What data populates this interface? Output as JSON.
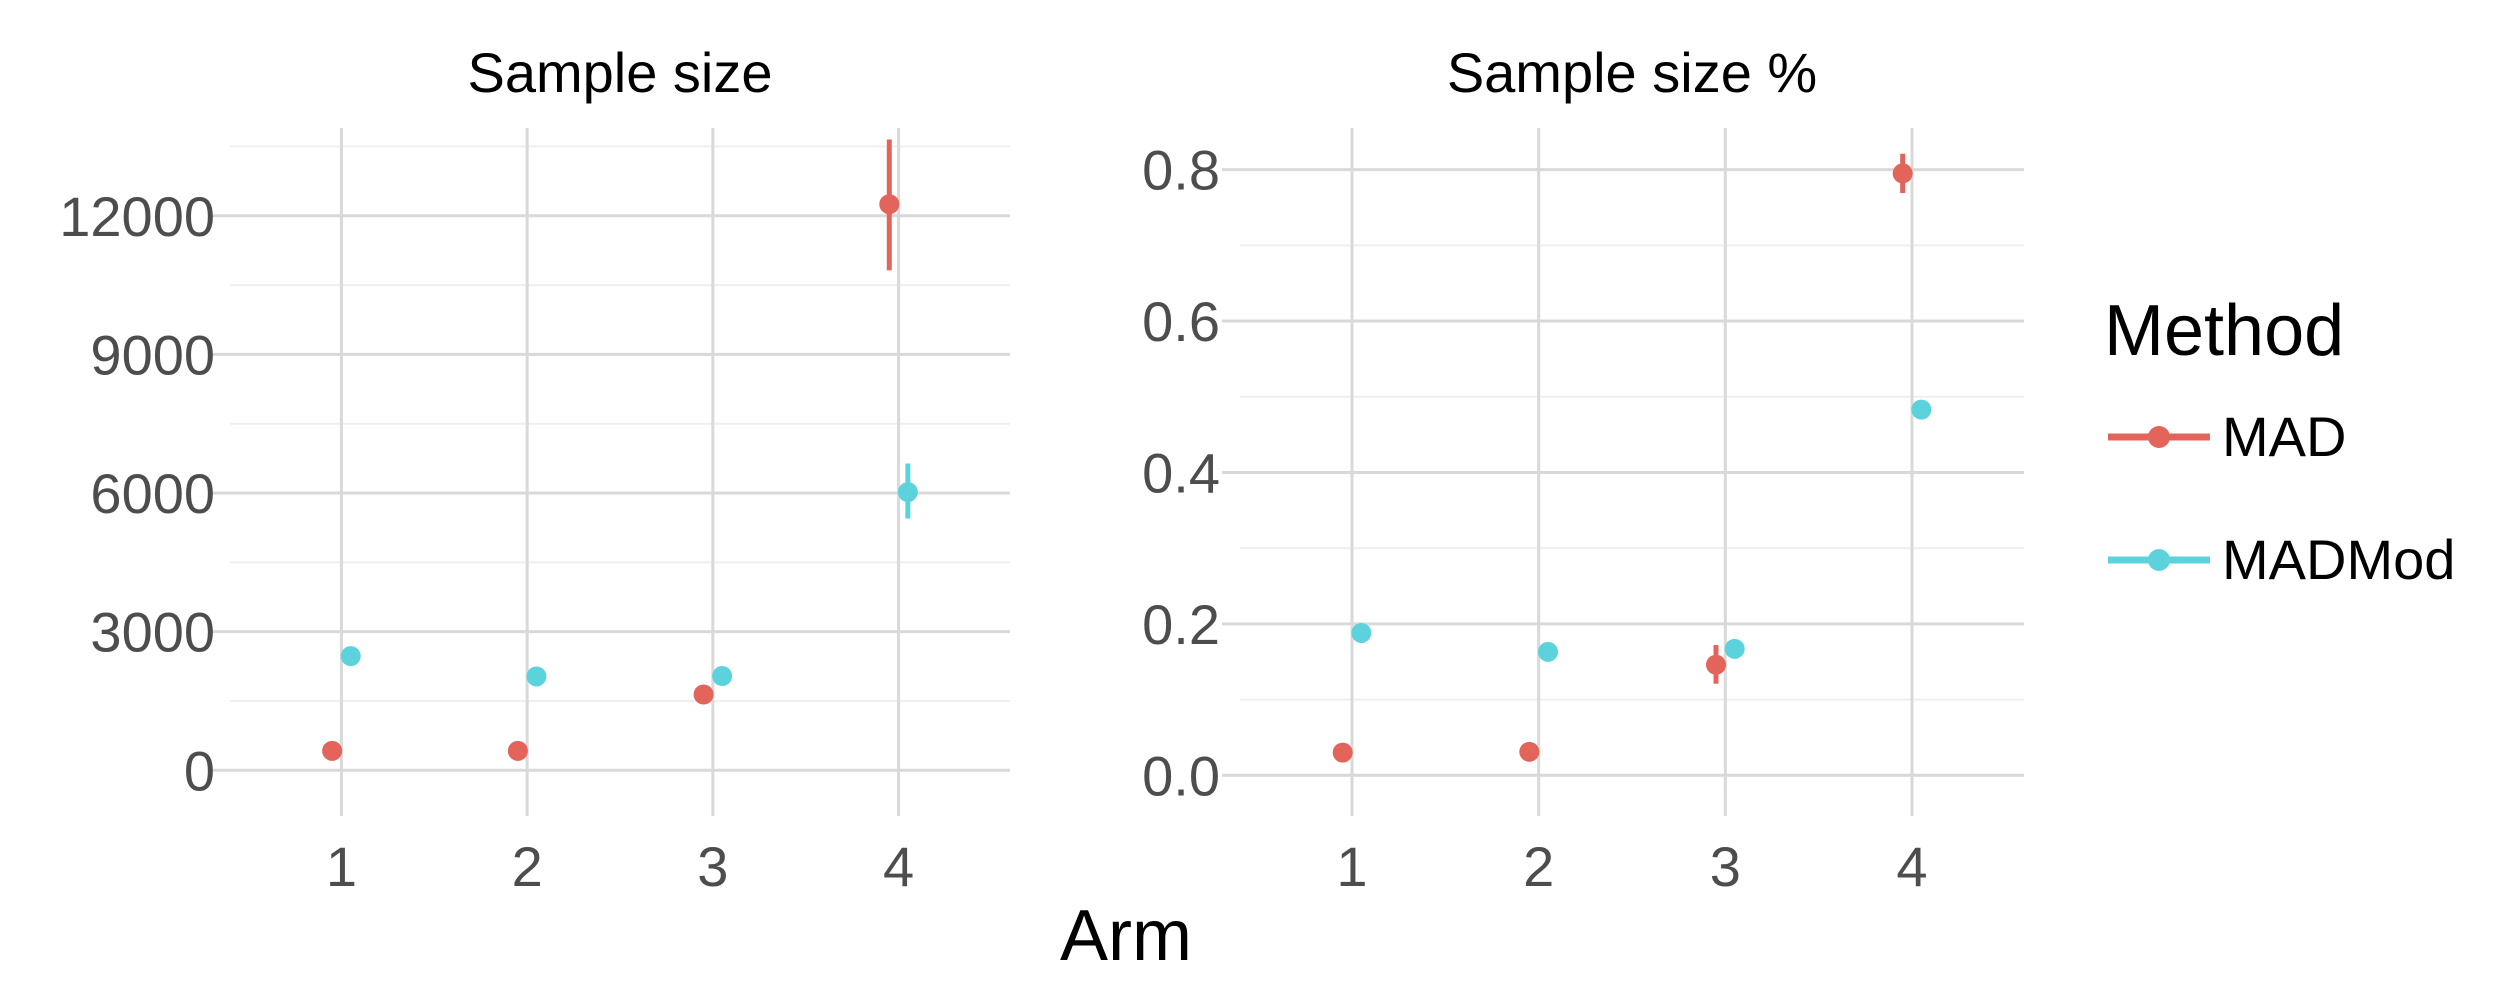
{
  "chart_data": [
    {
      "type": "scatter",
      "title": "Sample size",
      "xlabel": "Arm",
      "ylabel": "",
      "categories": [
        "1",
        "2",
        "3",
        "4"
      ],
      "xlim": [
        0.4,
        4.6
      ],
      "ylim": [
        -600,
        13900
      ],
      "yticks": [
        0,
        3000,
        6000,
        9000,
        12000
      ],
      "ytick_labels": [
        "0",
        "3000",
        "6000",
        "9000",
        "12000"
      ],
      "grid": true,
      "series": [
        {
          "name": "MAD",
          "x": [
            1,
            2,
            3,
            4
          ],
          "values": [
            420,
            420,
            1640,
            12250
          ],
          "lower": [
            380,
            380,
            1560,
            10820
          ],
          "upper": [
            460,
            460,
            1720,
            13650
          ]
        },
        {
          "name": "MADMod",
          "x": [
            1,
            2,
            3,
            4
          ],
          "values": [
            2470,
            2030,
            2040,
            6020
          ],
          "lower": [
            2270,
            1980,
            1990,
            5450
          ],
          "upper": [
            2680,
            2080,
            2090,
            6640
          ]
        }
      ]
    },
    {
      "type": "scatter",
      "title": "Sample size %",
      "xlabel": "Arm",
      "ylabel": "",
      "categories": [
        "1",
        "2",
        "3",
        "4"
      ],
      "xlim": [
        0.4,
        4.6
      ],
      "ylim": [
        -0.03,
        0.855
      ],
      "yticks": [
        0.0,
        0.2,
        0.4,
        0.6,
        0.8
      ],
      "ytick_labels": [
        "0.0",
        "0.2",
        "0.4",
        "0.6",
        "0.8"
      ],
      "grid": true,
      "series": [
        {
          "name": "MAD",
          "x": [
            1,
            2,
            3,
            4
          ],
          "values": [
            0.03,
            0.031,
            0.146,
            0.795
          ],
          "lower": [
            0.028,
            0.029,
            0.121,
            0.769
          ],
          "upper": [
            0.032,
            0.033,
            0.172,
            0.821
          ]
        },
        {
          "name": "MADMod",
          "x": [
            1,
            2,
            3,
            4
          ],
          "values": [
            0.188,
            0.163,
            0.167,
            0.483
          ],
          "lower": [
            0.184,
            0.159,
            0.162,
            0.479
          ],
          "upper": [
            0.193,
            0.167,
            0.172,
            0.488
          ]
        }
      ]
    }
  ],
  "axis_title": "Arm",
  "legend": {
    "title": "Method",
    "placement": "right",
    "items": [
      {
        "label": "MAD",
        "color": "#E2645A"
      },
      {
        "label": "MADMod",
        "color": "#5CD3DC"
      }
    ]
  },
  "colors": {
    "MAD": "#E2645A",
    "MADMod": "#5CD3DC",
    "grid_major": "#d9d9d9",
    "grid_minor": "#efefef",
    "tick_text": "#4d4d4d"
  }
}
